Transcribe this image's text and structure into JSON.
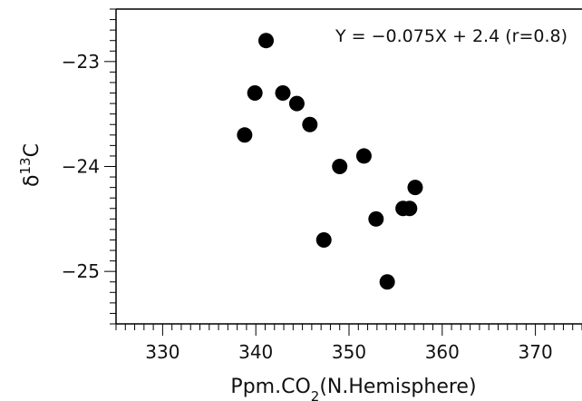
{
  "chart_data": {
    "type": "scatter",
    "title": "",
    "xlabel": "Ppm.CO2(N.Hemisphere)",
    "ylabel": "δ13C",
    "annotation": "Y = −0.075X + 2.4 (r=0.8)",
    "xlim": [
      325,
      375
    ],
    "ylim": [
      -25.5,
      -22.5
    ],
    "x_ticks": [
      330,
      340,
      350,
      360,
      370
    ],
    "x_tick_labels": [
      "330",
      "340",
      "350",
      "360",
      "370"
    ],
    "y_ticks": [
      -23,
      -24,
      -25
    ],
    "y_tick_labels": [
      "−23",
      "−24",
      "−25"
    ],
    "grid": false,
    "legend": "none",
    "marker_color": "#000000",
    "series": [
      {
        "points": [
          {
            "x": 338.8,
            "y": -23.7
          },
          {
            "x": 339.9,
            "y": -23.3
          },
          {
            "x": 341.1,
            "y": -22.8
          },
          {
            "x": 342.9,
            "y": -23.3
          },
          {
            "x": 344.4,
            "y": -23.4
          },
          {
            "x": 345.8,
            "y": -23.6
          },
          {
            "x": 347.3,
            "y": -24.7
          },
          {
            "x": 349.0,
            "y": -24.0
          },
          {
            "x": 351.6,
            "y": -23.9
          },
          {
            "x": 352.9,
            "y": -24.5
          },
          {
            "x": 354.1,
            "y": -25.1
          },
          {
            "x": 355.8,
            "y": -24.4
          },
          {
            "x": 356.5,
            "y": -24.4
          },
          {
            "x": 357.1,
            "y": -24.2
          }
        ]
      }
    ]
  }
}
